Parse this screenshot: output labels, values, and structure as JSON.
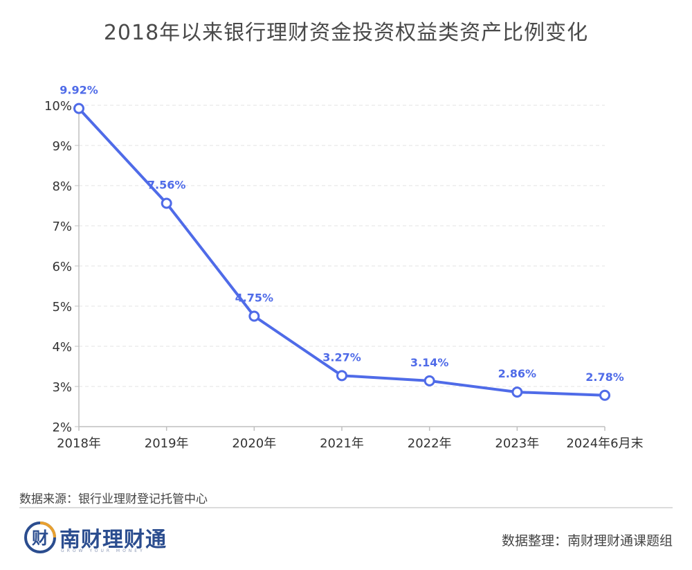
{
  "title": "2018年以来银行理财资金投资权益类资产比例变化",
  "source": "数据来源：银行业理财登记托管中心",
  "credit": "数据整理：南财理财通课题组",
  "logo": {
    "name": "南财理财通",
    "slogan": "GROW YOUR MONEY",
    "badge_char": "财"
  },
  "colors": {
    "line": "#4f6be8",
    "label": "#4f6be8",
    "grid": "#e3e3e3",
    "axis": "#bfbfbf",
    "text": "#333333"
  },
  "chart_data": {
    "type": "line",
    "title": "2018年以来银行理财资金投资权益类资产比例变化",
    "categories": [
      "2018年",
      "2019年",
      "2020年",
      "2021年",
      "2022年",
      "2023年",
      "2024年6月末"
    ],
    "series": [
      {
        "values": [
          9.92,
          7.56,
          4.75,
          3.27,
          3.14,
          2.86,
          2.78
        ],
        "labels": [
          "9.92%",
          "7.56%",
          "4.75%",
          "3.27%",
          "3.14%",
          "2.86%",
          "2.78%"
        ]
      }
    ],
    "yticks": [
      "2%",
      "3%",
      "4%",
      "5%",
      "6%",
      "7%",
      "8%",
      "9%",
      "10%"
    ],
    "ylim": [
      2,
      10
    ],
    "grid": true,
    "markers": "hollow-circle"
  }
}
